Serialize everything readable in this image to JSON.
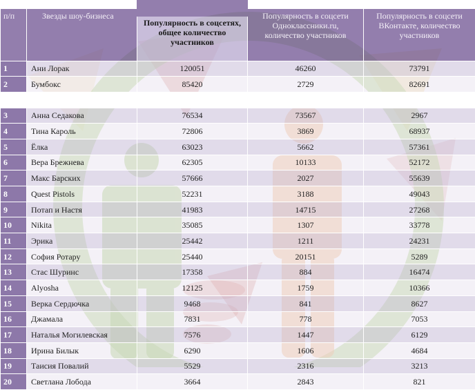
{
  "header": {
    "num": "п/п",
    "name": "Звезды шоу-бизнеса",
    "total": "Популярность в соцсетях, общее количество участников",
    "ok": "Популярность в соцсети Одноклассники.ru, количество участников",
    "vk": "Популярность в соцсети ВКонтакте, количество участников"
  },
  "colors": {
    "header_purple": "#745a96",
    "row_light": "#d6cde2",
    "ring_green": "#9dc86a",
    "figure_orange": "#f2a86b",
    "triangle_red": "#c8584a"
  },
  "rows": [
    {
      "n": "1",
      "name": "Ани Лорак",
      "total": "120051",
      "ok": "46260",
      "vk": "73791"
    },
    {
      "n": "2",
      "name": "Бумбокс",
      "total": "85420",
      "ok": "2729",
      "vk": "82691"
    },
    {
      "n": "3",
      "name": "Анна Седакова",
      "total": "76534",
      "ok": "73567",
      "vk": "2967"
    },
    {
      "n": "4",
      "name": "Тина Кароль",
      "total": "72806",
      "ok": "3869",
      "vk": "68937"
    },
    {
      "n": "5",
      "name": "Ёлка",
      "total": "63023",
      "ok": "5662",
      "vk": "57361"
    },
    {
      "n": "6",
      "name": "Вера Брежнева",
      "total": "62305",
      "ok": "10133",
      "vk": "52172"
    },
    {
      "n": "7",
      "name": "Макс Барских",
      "total": "57666",
      "ok": "2027",
      "vk": "55639"
    },
    {
      "n": "8",
      "name": "Quest Pistols",
      "total": "52231",
      "ok": "3188",
      "vk": "49043"
    },
    {
      "n": "9",
      "name": "Потап и Настя",
      "total": "41983",
      "ok": "14715",
      "vk": "27268"
    },
    {
      "n": "10",
      "name": "Nikita",
      "total": "35085",
      "ok": "1307",
      "vk": "33778"
    },
    {
      "n": "11",
      "name": "Эрика",
      "total": "25442",
      "ok": "1211",
      "vk": "24231"
    },
    {
      "n": "12",
      "name": "София Ротару",
      "total": "25440",
      "ok": "20151",
      "vk": "5289"
    },
    {
      "n": "13",
      "name": "Стас Шуринс",
      "total": "17358",
      "ok": "884",
      "vk": "16474"
    },
    {
      "n": "14",
      "name": "Alyosha",
      "total": "12125",
      "ok": "1759",
      "vk": "10366"
    },
    {
      "n": "15",
      "name": "Верка Сердючка",
      "total": "9468",
      "ok": "841",
      "vk": "8627"
    },
    {
      "n": "16",
      "name": "Джамала",
      "total": "7831",
      "ok": "778",
      "vk": "7053"
    },
    {
      "n": "17",
      "name": "Наталья Могилевская",
      "total": "7576",
      "ok": "1447",
      "vk": "6129"
    },
    {
      "n": "18",
      "name": "Ирина Билык",
      "total": "6290",
      "ok": "1606",
      "vk": "4684"
    },
    {
      "n": "19",
      "name": "Таисия Повалий",
      "total": "5529",
      "ok": "2316",
      "vk": "3213"
    },
    {
      "n": "20",
      "name": "Светлана Лобода",
      "total": "3664",
      "ok": "2843",
      "vk": "821"
    }
  ]
}
